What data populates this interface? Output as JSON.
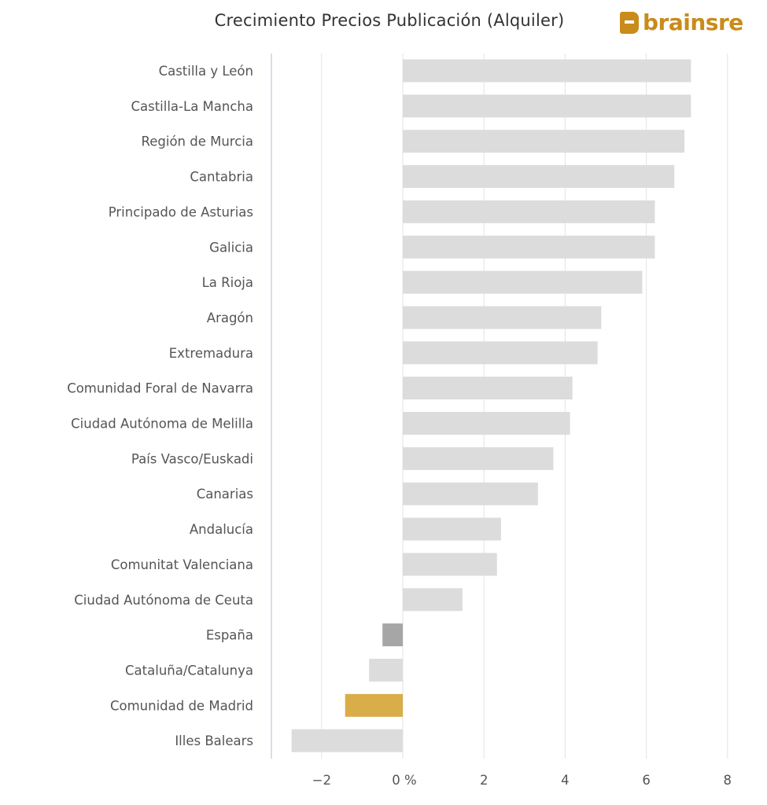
{
  "chart_data": {
    "type": "bar",
    "orientation": "horizontal",
    "title": "Crecimiento Precios Publicación (Alquiler)",
    "brand": "brainsre",
    "xlabel": "",
    "ylabel": "",
    "xlim": [
      -3.2,
      8
    ],
    "x_ticks": [
      -2,
      0,
      2,
      4,
      6,
      8
    ],
    "x_tick_labels": [
      "−2",
      "0 %",
      "2",
      "4",
      "6",
      "8"
    ],
    "grid": true,
    "categories": [
      "Castilla y León",
      "Castilla-La Mancha",
      "Región de Murcia",
      "Cantabria",
      "Principado de Asturias",
      "Galicia",
      "La Rioja",
      "Aragón",
      "Extremadura",
      "Comunidad Foral de Navarra",
      "Ciudad Autónoma de Melilla",
      "País Vasco/Euskadi",
      "Canarias",
      "Andalucía",
      "Comunitat Valenciana",
      "Ciudad Autónoma de Ceuta",
      "España",
      "Cataluña/Catalunya",
      "Comunidad de Madrid",
      "Illes Balears"
    ],
    "values": [
      7.1,
      7.1,
      6.94,
      6.69,
      6.21,
      6.21,
      5.9,
      4.89,
      4.8,
      4.18,
      4.12,
      3.71,
      3.33,
      2.42,
      2.32,
      1.47,
      -0.5,
      -0.83,
      -1.42,
      -2.74
    ],
    "colors": {
      "default": "#dcdcdc",
      "España": "#a6a6a6",
      "Comunidad de Madrid": "#d9ad47"
    }
  }
}
